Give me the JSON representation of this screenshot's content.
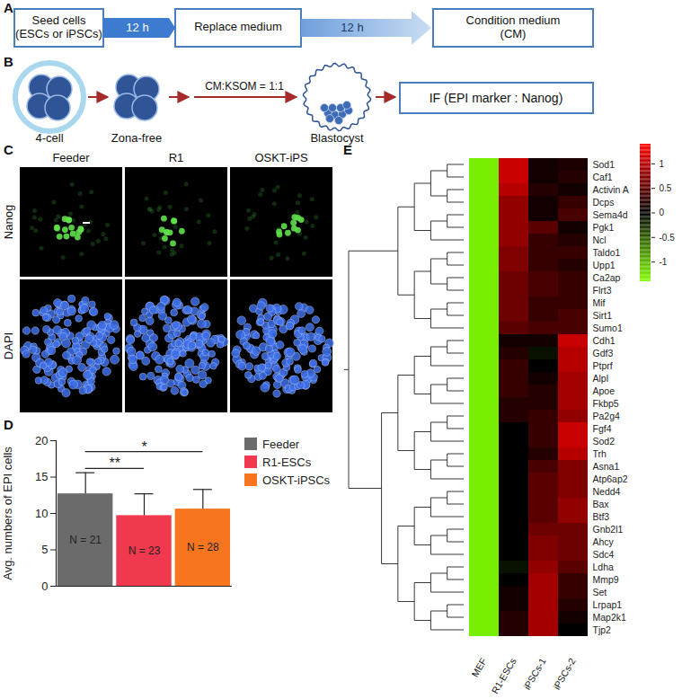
{
  "panel_labels": [
    "A",
    "B",
    "C",
    "D",
    "E"
  ],
  "A": {
    "boxes": [
      [
        "Seed cells",
        "(ESCs or iPSCs)"
      ],
      [
        "Replace medium"
      ],
      [
        "Condition medium",
        "(CM)"
      ]
    ],
    "arrows": [
      "12 h",
      "12 h"
    ]
  },
  "B": {
    "stages": [
      "4-cell",
      "Zona-free",
      "Blastocyst"
    ],
    "arrow_label": "CM:KSOM = 1:1",
    "box": "IF (EPI marker : Nanog)"
  },
  "C": {
    "columns": [
      "Feeder",
      "R1",
      "OSKT-iPS"
    ],
    "rows": [
      "Nanog",
      "DAPI"
    ]
  },
  "chart_data": [
    {
      "type": "bar",
      "ylabel": "Avg. numbers of EPI cells",
      "categories": [
        "Feeder",
        "R1-ESCs",
        "OSKT-iPSCs"
      ],
      "values": [
        12.7,
        9.7,
        10.6
      ],
      "errors": [
        2.9,
        3.0,
        2.7
      ],
      "colors": [
        "#6b6b6b",
        "#f0384f",
        "#f7751f"
      ],
      "n_labels": [
        "N = 21",
        "N = 23",
        "N = 28"
      ],
      "ylim": [
        0,
        20
      ],
      "yticks": [
        0,
        5,
        10,
        15,
        20
      ],
      "tick_labels": "y",
      "legend": "right",
      "annotations": [
        {
          "text": "**",
          "from": "Feeder",
          "to": "R1-ESCs",
          "y": 16.2
        },
        {
          "text": "*",
          "from": "Feeder",
          "to": "OSKT-iPSCs",
          "y": 18.5
        }
      ]
    },
    {
      "type": "heatmap",
      "columns": [
        "MEF",
        "R1-ESCs",
        "iPSCs-1",
        "iPSCs-2"
      ],
      "rows": [
        "Sod1",
        "Caf1",
        "Activin A",
        "Dcps",
        "Sema4d",
        "Pgk1",
        "Ncl",
        "Taldo1",
        "Upp1",
        "Ca2ap",
        "Flrt3",
        "Mif",
        "Sirt1",
        "Sumo1",
        "Cdh1",
        "Gdf3",
        "Ptprf",
        "Alpl",
        "Apoe",
        "Fkbp5",
        "Pa2g4",
        "Fgf4",
        "Sod2",
        "Trh",
        "Asna1",
        "Atp6ap2",
        "Nedd4",
        "Bax",
        "Btf3",
        "Gnb2l1",
        "Ahcy",
        "Sdc4",
        "Ldha",
        "Mmp9",
        "Set",
        "Lrpap1",
        "Map2k1",
        "Tjp2"
      ],
      "values": [
        [
          -1.3,
          1.1,
          0.1,
          0.15
        ],
        [
          -1.3,
          1.1,
          0.1,
          0.2
        ],
        [
          -1.3,
          1.0,
          0.2,
          0.1
        ],
        [
          -1.3,
          0.8,
          0.1,
          0.3
        ],
        [
          -1.3,
          0.8,
          0.1,
          0.4
        ],
        [
          -1.3,
          0.8,
          0.5,
          0.1
        ],
        [
          -1.3,
          0.8,
          0.3,
          0.2
        ],
        [
          -1.3,
          0.7,
          0.3,
          0.3
        ],
        [
          -1.3,
          0.7,
          0.3,
          0.2
        ],
        [
          -1.3,
          0.6,
          0.4,
          0.3
        ],
        [
          -1.3,
          0.6,
          0.4,
          0.3
        ],
        [
          -1.3,
          0.6,
          0.3,
          0.3
        ],
        [
          -1.3,
          0.6,
          0.3,
          0.4
        ],
        [
          -1.3,
          0.5,
          0.4,
          0.4
        ],
        [
          -1.3,
          0.1,
          0.1,
          1.1
        ],
        [
          -1.3,
          0.2,
          -0.1,
          1.0
        ],
        [
          -1.3,
          0.3,
          0.0,
          1.0
        ],
        [
          -1.3,
          0.3,
          0.1,
          0.9
        ],
        [
          -1.3,
          0.3,
          0.2,
          0.9
        ],
        [
          -1.3,
          0.2,
          0.2,
          0.9
        ],
        [
          -1.3,
          0.2,
          0.3,
          0.8
        ],
        [
          -1.3,
          0.0,
          0.3,
          1.1
        ],
        [
          -1.3,
          0.0,
          0.3,
          1.1
        ],
        [
          -1.3,
          0.0,
          0.2,
          1.0
        ],
        [
          -1.3,
          0.0,
          0.4,
          0.7
        ],
        [
          -1.3,
          0.0,
          0.5,
          0.7
        ],
        [
          -1.3,
          0.0,
          0.5,
          0.7
        ],
        [
          -1.3,
          0.0,
          0.5,
          0.8
        ],
        [
          -1.3,
          0.0,
          0.5,
          0.8
        ],
        [
          -1.3,
          0.0,
          0.6,
          0.6
        ],
        [
          -1.3,
          0.0,
          0.7,
          0.6
        ],
        [
          -1.3,
          0.0,
          0.7,
          0.6
        ],
        [
          -1.3,
          -0.1,
          0.8,
          0.5
        ],
        [
          -1.3,
          0.0,
          0.9,
          0.3
        ],
        [
          -1.3,
          0.1,
          0.9,
          0.3
        ],
        [
          -1.3,
          0.1,
          0.9,
          0.2
        ],
        [
          -1.3,
          0.2,
          0.9,
          0.1
        ],
        [
          -1.3,
          0.2,
          0.9,
          0.0
        ]
      ],
      "colorbar": {
        "range": [
          -1.4,
          1.4
        ],
        "ticks": [
          -1,
          -0.5,
          0,
          0.5,
          1
        ],
        "colors": [
          "#80ff00",
          "#000000",
          "#ff0000"
        ]
      },
      "row_clusters": [
        14,
        24
      ]
    }
  ]
}
